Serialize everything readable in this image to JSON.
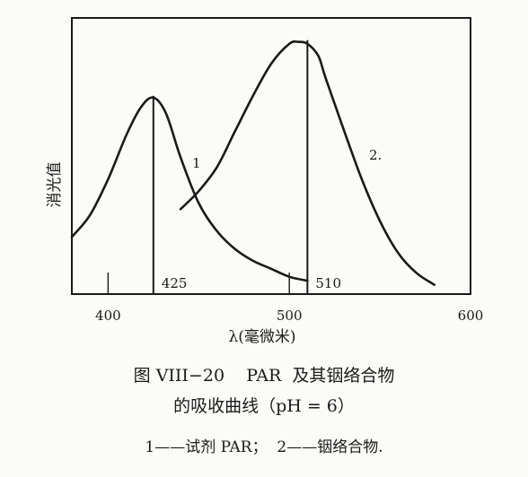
{
  "chart_data": {
    "type": "line",
    "xlabel": "λ(毫微米)",
    "ylabel": "消光值",
    "xlim": [
      380,
      600
    ],
    "xticks": [
      400,
      500,
      600
    ],
    "x_minor_ticks": [
      400,
      500
    ],
    "grid": false,
    "legend": "none",
    "series": [
      {
        "label": "1",
        "x": [
          380,
          390,
          400,
          410,
          418,
          425,
          432,
          440,
          450,
          460,
          470,
          480,
          490,
          500,
          510
        ],
        "y": [
          0.26,
          0.37,
          0.55,
          0.77,
          0.91,
          0.96,
          0.88,
          0.66,
          0.43,
          0.29,
          0.2,
          0.14,
          0.1,
          0.06,
          0.04
        ],
        "peak_label": "425",
        "peak_x": 425
      },
      {
        "label": "2.",
        "x": [
          440,
          450,
          460,
          470,
          480,
          490,
          500,
          505,
          510,
          516,
          520,
          530,
          540,
          550,
          560,
          570,
          580
        ],
        "y": [
          0.4,
          0.49,
          0.61,
          0.79,
          0.97,
          1.13,
          1.23,
          1.24,
          1.23,
          1.17,
          1.06,
          0.8,
          0.55,
          0.34,
          0.18,
          0.08,
          0.02
        ],
        "peak_label": "510",
        "peak_x": 510
      }
    ]
  },
  "caption": {
    "line1": "图 VIII−20    PAR  及其铟络合物",
    "line2": "的吸收曲线（pH = 6）",
    "line3": "1——试剂 PAR；  2——铟络合物."
  }
}
